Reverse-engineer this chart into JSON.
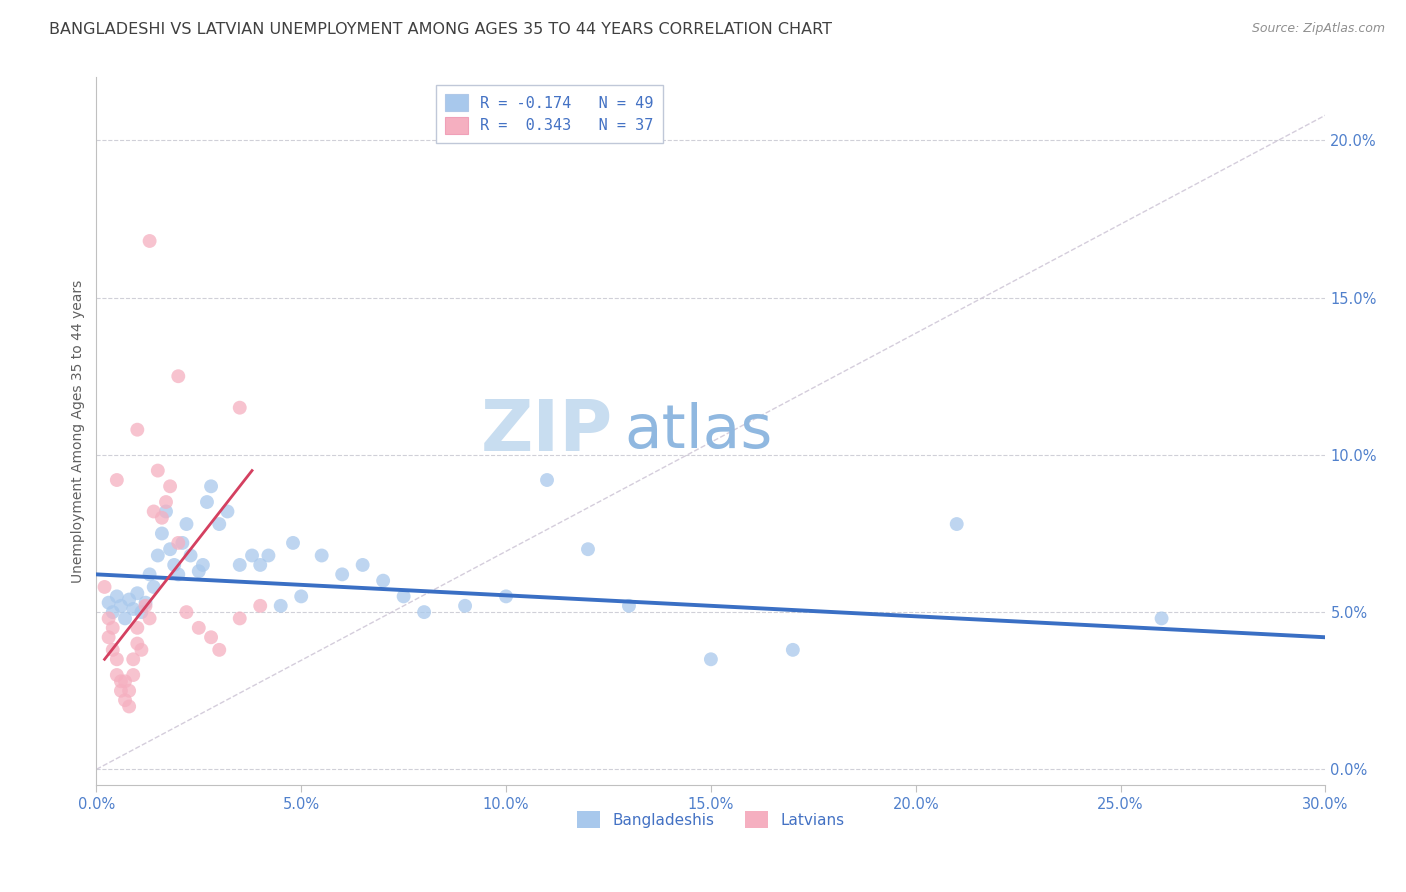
{
  "title": "BANGLADESHI VS LATVIAN UNEMPLOYMENT AMONG AGES 35 TO 44 YEARS CORRELATION CHART",
  "source": "Source: ZipAtlas.com",
  "xlabel_ticks": [
    "0.0%",
    "5.0%",
    "10.0%",
    "15.0%",
    "20.0%",
    "25.0%",
    "30.0%"
  ],
  "xlabel_vals": [
    0.0,
    5.0,
    10.0,
    15.0,
    20.0,
    25.0,
    30.0
  ],
  "ylabel": "Unemployment Among Ages 35 to 44 years",
  "ylabel_ticks": [
    "0.0%",
    "5.0%",
    "10.0%",
    "15.0%",
    "20.0%"
  ],
  "ylabel_vals": [
    0.0,
    5.0,
    10.0,
    15.0,
    20.0
  ],
  "xlim": [
    0.0,
    30.0
  ],
  "ylim": [
    -0.5,
    22.0
  ],
  "legend_blue_label": "R = -0.174   N = 49",
  "legend_pink_label": "R =  0.343   N = 37",
  "blue_scatter": [
    [
      0.3,
      5.3
    ],
    [
      0.4,
      5.0
    ],
    [
      0.5,
      5.5
    ],
    [
      0.6,
      5.2
    ],
    [
      0.7,
      4.8
    ],
    [
      0.8,
      5.4
    ],
    [
      0.9,
      5.1
    ],
    [
      1.0,
      5.6
    ],
    [
      1.1,
      5.0
    ],
    [
      1.2,
      5.3
    ],
    [
      1.3,
      6.2
    ],
    [
      1.4,
      5.8
    ],
    [
      1.5,
      6.8
    ],
    [
      1.6,
      7.5
    ],
    [
      1.7,
      8.2
    ],
    [
      1.8,
      7.0
    ],
    [
      1.9,
      6.5
    ],
    [
      2.0,
      6.2
    ],
    [
      2.1,
      7.2
    ],
    [
      2.2,
      7.8
    ],
    [
      2.3,
      6.8
    ],
    [
      2.5,
      6.3
    ],
    [
      2.6,
      6.5
    ],
    [
      2.7,
      8.5
    ],
    [
      2.8,
      9.0
    ],
    [
      3.0,
      7.8
    ],
    [
      3.2,
      8.2
    ],
    [
      3.5,
      6.5
    ],
    [
      3.8,
      6.8
    ],
    [
      4.0,
      6.5
    ],
    [
      4.2,
      6.8
    ],
    [
      4.5,
      5.2
    ],
    [
      4.8,
      7.2
    ],
    [
      5.0,
      5.5
    ],
    [
      5.5,
      6.8
    ],
    [
      6.0,
      6.2
    ],
    [
      6.5,
      6.5
    ],
    [
      7.0,
      6.0
    ],
    [
      7.5,
      5.5
    ],
    [
      8.0,
      5.0
    ],
    [
      9.0,
      5.2
    ],
    [
      10.0,
      5.5
    ],
    [
      11.0,
      9.2
    ],
    [
      12.0,
      7.0
    ],
    [
      13.0,
      5.2
    ],
    [
      15.0,
      3.5
    ],
    [
      17.0,
      3.8
    ],
    [
      21.0,
      7.8
    ],
    [
      26.0,
      4.8
    ]
  ],
  "pink_scatter": [
    [
      0.2,
      5.8
    ],
    [
      0.3,
      4.8
    ],
    [
      0.3,
      4.2
    ],
    [
      0.4,
      4.5
    ],
    [
      0.4,
      3.8
    ],
    [
      0.5,
      3.5
    ],
    [
      0.5,
      3.0
    ],
    [
      0.6,
      2.8
    ],
    [
      0.6,
      2.5
    ],
    [
      0.7,
      2.8
    ],
    [
      0.7,
      2.2
    ],
    [
      0.8,
      2.5
    ],
    [
      0.8,
      2.0
    ],
    [
      0.9,
      3.5
    ],
    [
      0.9,
      3.0
    ],
    [
      1.0,
      4.5
    ],
    [
      1.0,
      4.0
    ],
    [
      1.1,
      3.8
    ],
    [
      1.2,
      5.2
    ],
    [
      1.3,
      4.8
    ],
    [
      1.4,
      8.2
    ],
    [
      1.5,
      9.5
    ],
    [
      1.6,
      8.0
    ],
    [
      1.7,
      8.5
    ],
    [
      1.8,
      9.0
    ],
    [
      2.0,
      7.2
    ],
    [
      2.2,
      5.0
    ],
    [
      2.5,
      4.5
    ],
    [
      2.8,
      4.2
    ],
    [
      3.0,
      3.8
    ],
    [
      3.5,
      4.8
    ],
    [
      4.0,
      5.2
    ],
    [
      1.3,
      16.8
    ],
    [
      2.0,
      12.5
    ],
    [
      3.5,
      11.5
    ],
    [
      0.5,
      9.2
    ],
    [
      1.0,
      10.8
    ]
  ],
  "blue_line_x": [
    0.0,
    30.0
  ],
  "blue_line_y": [
    6.2,
    4.2
  ],
  "pink_line_x": [
    0.2,
    3.8
  ],
  "pink_line_y": [
    3.5,
    9.5
  ],
  "diagonal_line_x": [
    0.0,
    30.0
  ],
  "diagonal_line_y": [
    0.0,
    20.8
  ],
  "watermark_zip": "ZIP",
  "watermark_atlas": "atlas",
  "scatter_size": 100,
  "blue_scatter_color": "#a8c8ec",
  "pink_scatter_color": "#f5afc0",
  "blue_line_color": "#3a6fc4",
  "pink_line_color": "#d44060",
  "diagonal_color": "#d0c8d8",
  "title_fontsize": 11.5,
  "tick_fontsize": 10.5,
  "legend_fontsize": 11,
  "source_fontsize": 9,
  "title_color": "#404040",
  "tick_color": "#5080cc",
  "ylabel_color": "#606060",
  "ylabel_fontsize": 10,
  "watermark_color_zip": "#c8ddf0",
  "watermark_color_atlas": "#90b8e0",
  "watermark_fontsize": 52
}
